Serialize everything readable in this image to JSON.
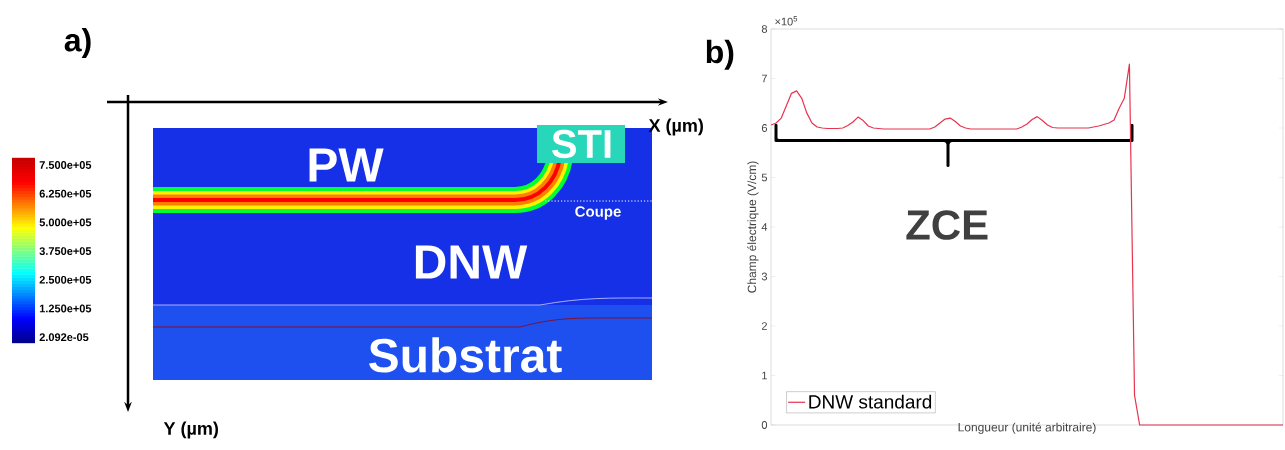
{
  "chart_data": [
    {
      "type": "other",
      "title": "a)",
      "xlabel": "X (µm)",
      "ylabel": "Y (µm)",
      "annotations": [
        "PW",
        "STI",
        "Coupe",
        "DNW",
        "Substrat",
        "7.500e+05",
        "6.250e+05",
        "5.000e+05",
        "3.750e+05",
        "2.500e+05",
        "1.250e+05",
        "2.092e-05"
      ]
    },
    {
      "type": "line",
      "title": "b)",
      "xlabel": "Longueur (unité arbitraire)",
      "ylabel": "Champ électrique (V/cm)",
      "ylim": [
        0,
        8
      ],
      "yticks": [
        0,
        1,
        2,
        3,
        4,
        5,
        6,
        7,
        8
      ],
      "tick_labels": "y",
      "legend": "bottom left",
      "annotations": [
        "×10$^{5}$",
        "ZCE"
      ],
      "categories": [
        null,
        null,
        null,
        null,
        null,
        null,
        null,
        null,
        null,
        null,
        null,
        null,
        null,
        null,
        null,
        null,
        null,
        null,
        null,
        null,
        null,
        null,
        null,
        null,
        null,
        null,
        null,
        null,
        null,
        null,
        null,
        null,
        null,
        null,
        null,
        null,
        null,
        null,
        null,
        null,
        null,
        null,
        null,
        null,
        null,
        null,
        null,
        null,
        null,
        null,
        null,
        null,
        null,
        null,
        null,
        null,
        null,
        null,
        null,
        null,
        null,
        null,
        null,
        null,
        null,
        null,
        null,
        null,
        null,
        null,
        null,
        null,
        null,
        null,
        null,
        null,
        null,
        null,
        null,
        null,
        null,
        null,
        null,
        null,
        null,
        null,
        null,
        null,
        null,
        null,
        null,
        null,
        null,
        null,
        null,
        null,
        null,
        null,
        null,
        null,
        null
      ],
      "series": [
        {
          "name": "DNW standard",
          "color": "#e8334f",
          "values": [
            6.06,
            6.1,
            6.2,
            6.45,
            6.7,
            6.75,
            6.6,
            6.3,
            6.1,
            6.02,
            6.0,
            5.99,
            5.99,
            5.99,
            6.0,
            6.05,
            6.12,
            6.22,
            6.15,
            6.04,
            6.0,
            5.99,
            5.98,
            5.98,
            5.98,
            5.98,
            5.98,
            5.98,
            5.98,
            5.98,
            5.98,
            5.98,
            6.02,
            6.1,
            6.18,
            6.2,
            6.13,
            6.04,
            6.0,
            5.98,
            5.98,
            5.98,
            5.98,
            5.98,
            5.98,
            5.98,
            5.98,
            5.98,
            5.98,
            6.02,
            6.08,
            6.17,
            6.23,
            6.15,
            6.06,
            6.01,
            6.0,
            6.0,
            6.0,
            6.0,
            6.0,
            6.0,
            6.0,
            6.02,
            6.04,
            6.07,
            6.1,
            6.16,
            6.4,
            6.6,
            7.29,
            0.6,
            0,
            0,
            0,
            0,
            0,
            0,
            0,
            0,
            0,
            0,
            0,
            0,
            0,
            0,
            0,
            0,
            0,
            0,
            0,
            0,
            0,
            0,
            0,
            0,
            0,
            0,
            0,
            0,
            0
          ]
        }
      ]
    }
  ]
}
